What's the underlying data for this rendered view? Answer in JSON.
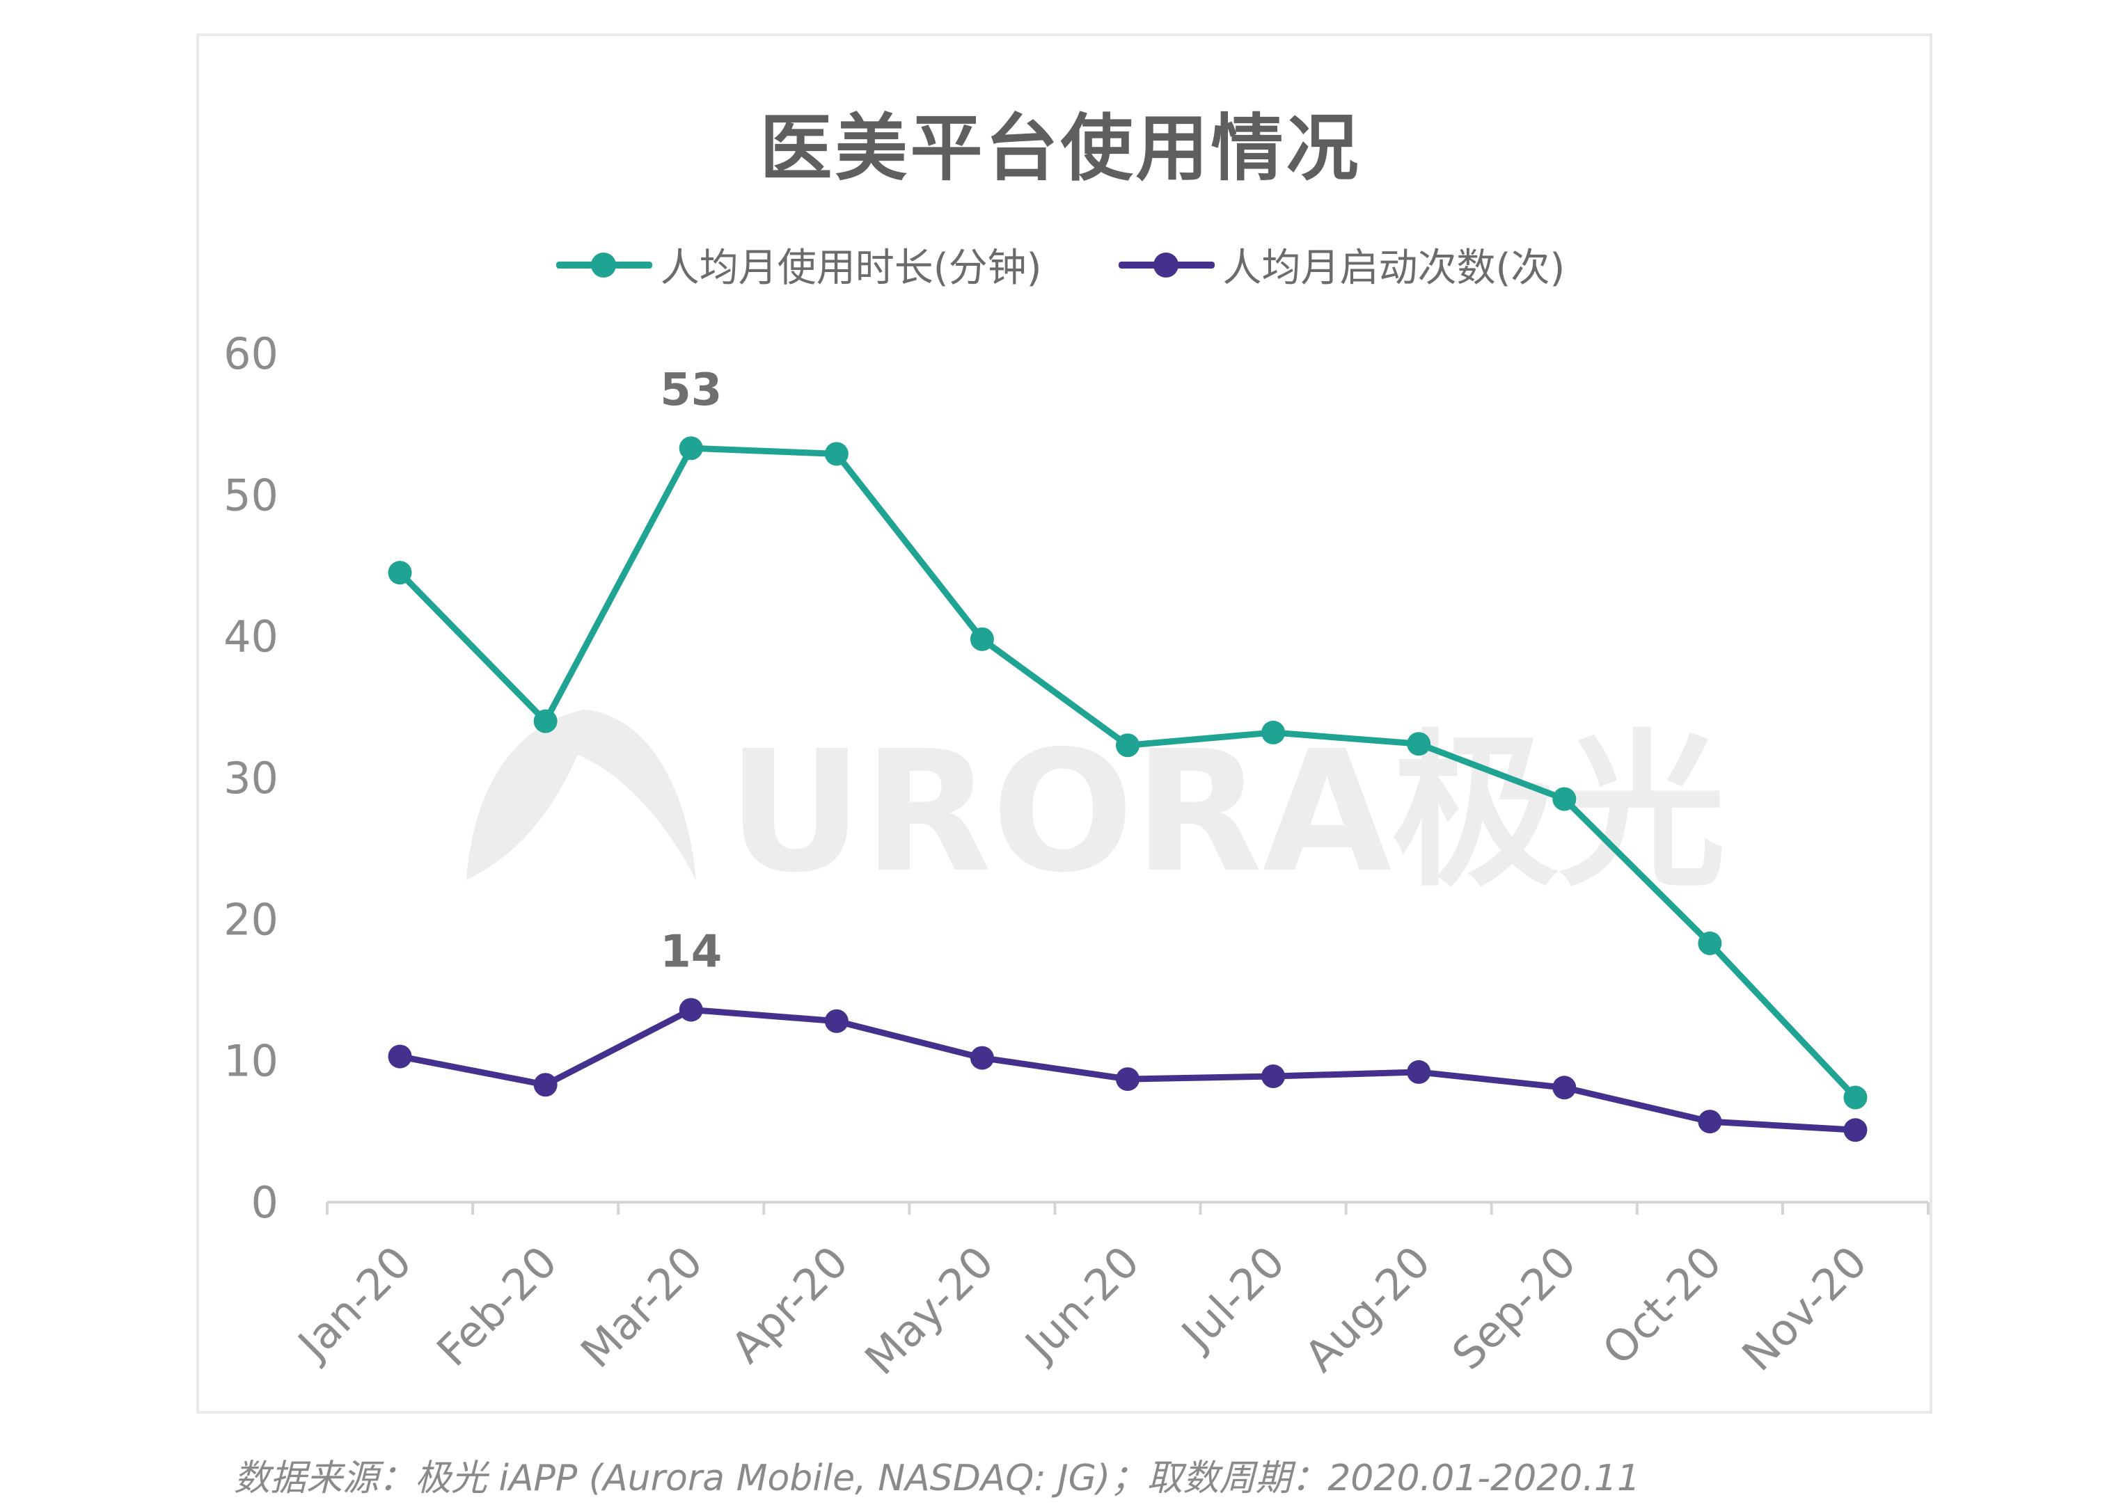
{
  "colors": {
    "series1": "#1fa393",
    "series2": "#44318e",
    "axis": "#d4d4d4",
    "tick_text": "#8c8c8c",
    "label_text": "#6f6f6f",
    "watermark": "#ededed"
  },
  "watermark": {
    "text": "URORA极光",
    "logo": "aurora-logo"
  },
  "source": "数据来源：极光 iAPP (Aurora Mobile, NASDAQ: JG)；取数周期：2020.01-2020.11",
  "chart_data": {
    "type": "line",
    "title": "医美平台使用情况",
    "xlabel": "",
    "ylabel": "",
    "ylim": [
      0,
      60
    ],
    "yticks": [
      0,
      10,
      20,
      30,
      40,
      50,
      60
    ],
    "grid": false,
    "legend_position": "top",
    "categories": [
      "Jan-20",
      "Feb-20",
      "Mar-20",
      "Apr-20",
      "May-20",
      "Jun-20",
      "Jul-20",
      "Aug-20",
      "Sep-20",
      "Oct-20",
      "Nov-20"
    ],
    "series": [
      {
        "name": "人均月使用时长(分钟)",
        "color": "#1fa393",
        "values": [
          44.5,
          34,
          53.3,
          52.9,
          39.8,
          32.3,
          33.2,
          32.4,
          28.5,
          18.3,
          7.4
        ],
        "labels": [
          {
            "index": 2,
            "text": "53"
          }
        ]
      },
      {
        "name": "人均月启动次数(次)",
        "color": "#44318e",
        "values": [
          10.3,
          8.3,
          13.6,
          12.8,
          10.2,
          8.7,
          8.9,
          9.2,
          8.1,
          5.7,
          5.1
        ],
        "labels": [
          {
            "index": 2,
            "text": "14"
          }
        ]
      }
    ]
  }
}
